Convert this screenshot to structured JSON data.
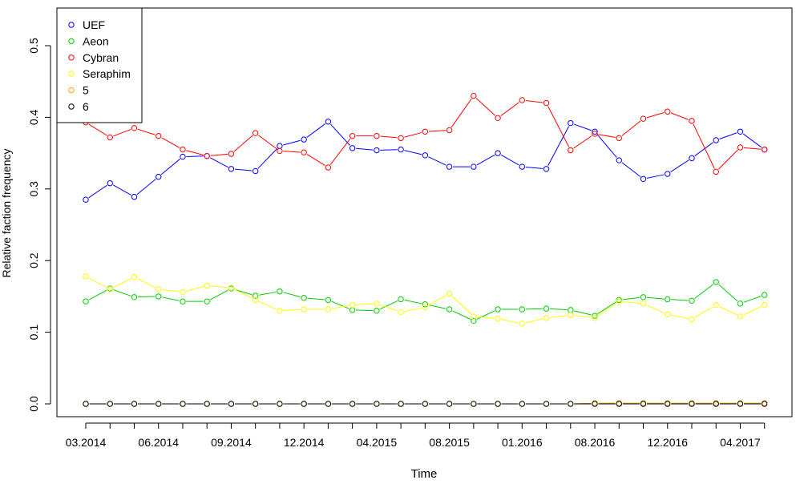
{
  "chart_data": {
    "type": "line",
    "xlabel": "Time",
    "ylabel": "Relative faction frequency",
    "ylim": [
      -0.02,
      0.55
    ],
    "yticks": [
      "0.0",
      "0.1",
      "0.2",
      "0.3",
      "0.4",
      "0.5"
    ],
    "xtick_labels": [
      "03.2014",
      "06.2014",
      "09.2014",
      "12.2014",
      "04.2015",
      "08.2015",
      "01.2016",
      "08.2016",
      "12.2016",
      "04.2017"
    ],
    "xtick_index": [
      0,
      3,
      6,
      9,
      12,
      15,
      18,
      21,
      24,
      27
    ],
    "n_points": 29,
    "legend_position": "top-left",
    "series": [
      {
        "name": "UEF",
        "color": "#0000ff",
        "values": [
          0.285,
          0.308,
          0.289,
          0.317,
          0.345,
          0.346,
          0.328,
          0.325,
          0.36,
          0.369,
          0.394,
          0.357,
          0.354,
          0.355,
          0.347,
          0.331,
          0.331,
          0.35,
          0.331,
          0.328,
          0.392,
          0.38,
          0.34,
          0.314,
          0.321,
          0.343,
          0.368,
          0.38,
          0.355
        ]
      },
      {
        "name": "Aeon",
        "color": "#00cd00",
        "values": [
          0.143,
          0.161,
          0.149,
          0.15,
          0.143,
          0.143,
          0.161,
          0.151,
          0.157,
          0.148,
          0.145,
          0.131,
          0.13,
          0.146,
          0.139,
          0.132,
          0.116,
          0.132,
          0.132,
          0.133,
          0.131,
          0.123,
          0.145,
          0.149,
          0.146,
          0.144,
          0.17,
          0.14,
          0.152
        ]
      },
      {
        "name": "Cybran",
        "color": "#ff0000",
        "values": [
          0.393,
          0.372,
          0.385,
          0.374,
          0.355,
          0.346,
          0.349,
          0.378,
          0.353,
          0.351,
          0.33,
          0.374,
          0.374,
          0.371,
          0.38,
          0.382,
          0.43,
          0.399,
          0.424,
          0.42,
          0.354,
          0.377,
          0.371,
          0.398,
          0.408,
          0.395,
          0.324,
          0.358,
          0.355
        ]
      },
      {
        "name": "Seraphim",
        "color": "#ffff00",
        "values": [
          0.178,
          0.16,
          0.177,
          0.16,
          0.156,
          0.165,
          0.162,
          0.145,
          0.13,
          0.132,
          0.132,
          0.138,
          0.14,
          0.128,
          0.135,
          0.154,
          0.122,
          0.119,
          0.112,
          0.12,
          0.124,
          0.12,
          0.143,
          0.14,
          0.125,
          0.118,
          0.138,
          0.122,
          0.138
        ]
      },
      {
        "name": "5",
        "color": "#ffa500",
        "values": [
          0,
          0,
          0,
          0,
          0,
          0,
          0,
          0,
          0,
          0,
          0,
          0,
          0,
          0,
          0,
          0,
          0,
          0,
          0,
          0,
          0,
          0.001,
          0.001,
          0.001,
          0.001,
          0.001,
          0.001,
          0.001,
          0.001
        ]
      },
      {
        "name": "6",
        "color": "#000000",
        "values": [
          0,
          0,
          0,
          0,
          0,
          0,
          0,
          0,
          0,
          0,
          0,
          0,
          0,
          0,
          0,
          0,
          0,
          0,
          0,
          0,
          0,
          0,
          0,
          0,
          0,
          0,
          0,
          0,
          0
        ]
      }
    ]
  }
}
